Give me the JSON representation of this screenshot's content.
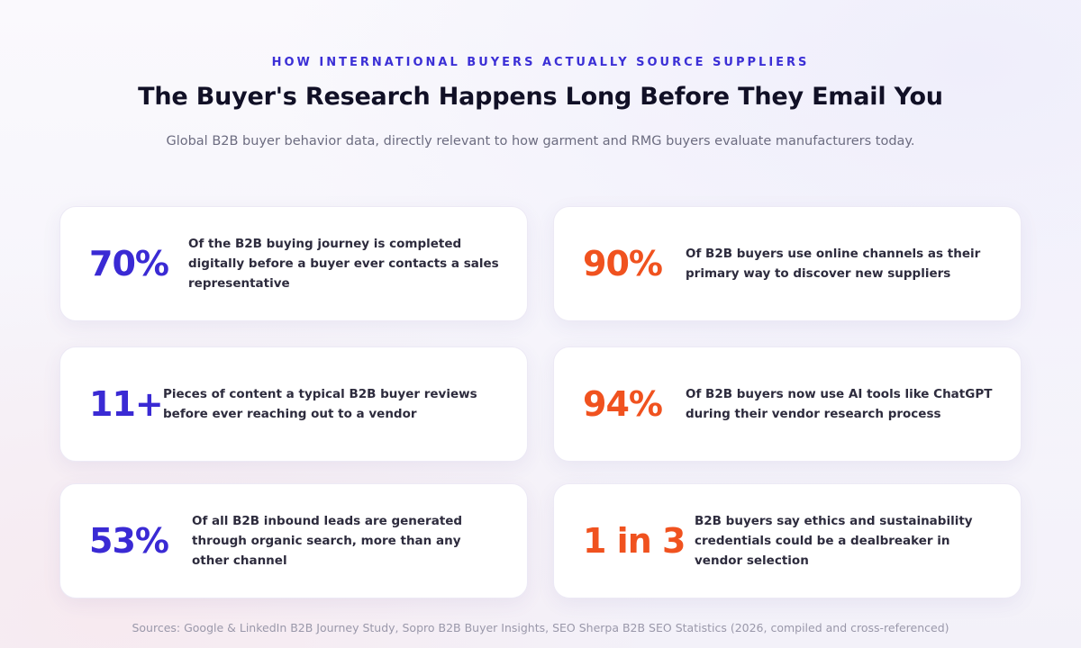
{
  "header": {
    "eyebrow": "HOW INTERNATIONAL BUYERS ACTUALLY SOURCE SUPPLIERS",
    "title": "The Buyer's Research Happens Long Before They Email You",
    "subtitle": "Global B2B buyer behavior data, directly relevant to how garment and RMG buyers evaluate manufacturers today."
  },
  "colors": {
    "purple_stat": "#3a2ad4",
    "orange_stat": "#f0521f",
    "eyebrow": "#3b2fd6"
  },
  "stats": [
    {
      "value": "70%",
      "color": "purple",
      "text": "Of the B2B buying journey is completed digitally before a buyer ever contacts a sales representative"
    },
    {
      "value": "90%",
      "color": "orange",
      "text": "Of B2B buyers use online channels as their primary way to discover new suppliers"
    },
    {
      "value": "11+",
      "color": "purple",
      "text": "Pieces of content a typical B2B buyer reviews before ever reaching out to a vendor"
    },
    {
      "value": "94%",
      "color": "orange",
      "text": "Of B2B buyers now use AI tools like ChatGPT during their vendor research process"
    },
    {
      "value": "53%",
      "color": "purple",
      "text": "Of all B2B inbound leads are generated through organic search, more than any other channel"
    },
    {
      "value": "1 in 3",
      "color": "orange",
      "text": "B2B buyers say ethics and sustainability credentials could be a dealbreaker in vendor selection"
    }
  ],
  "footer": {
    "sources": "Sources: Google & LinkedIn B2B Journey Study, Sopro B2B Buyer Insights, SEO Sherpa B2B SEO Statistics (2026, compiled and cross-referenced)"
  }
}
